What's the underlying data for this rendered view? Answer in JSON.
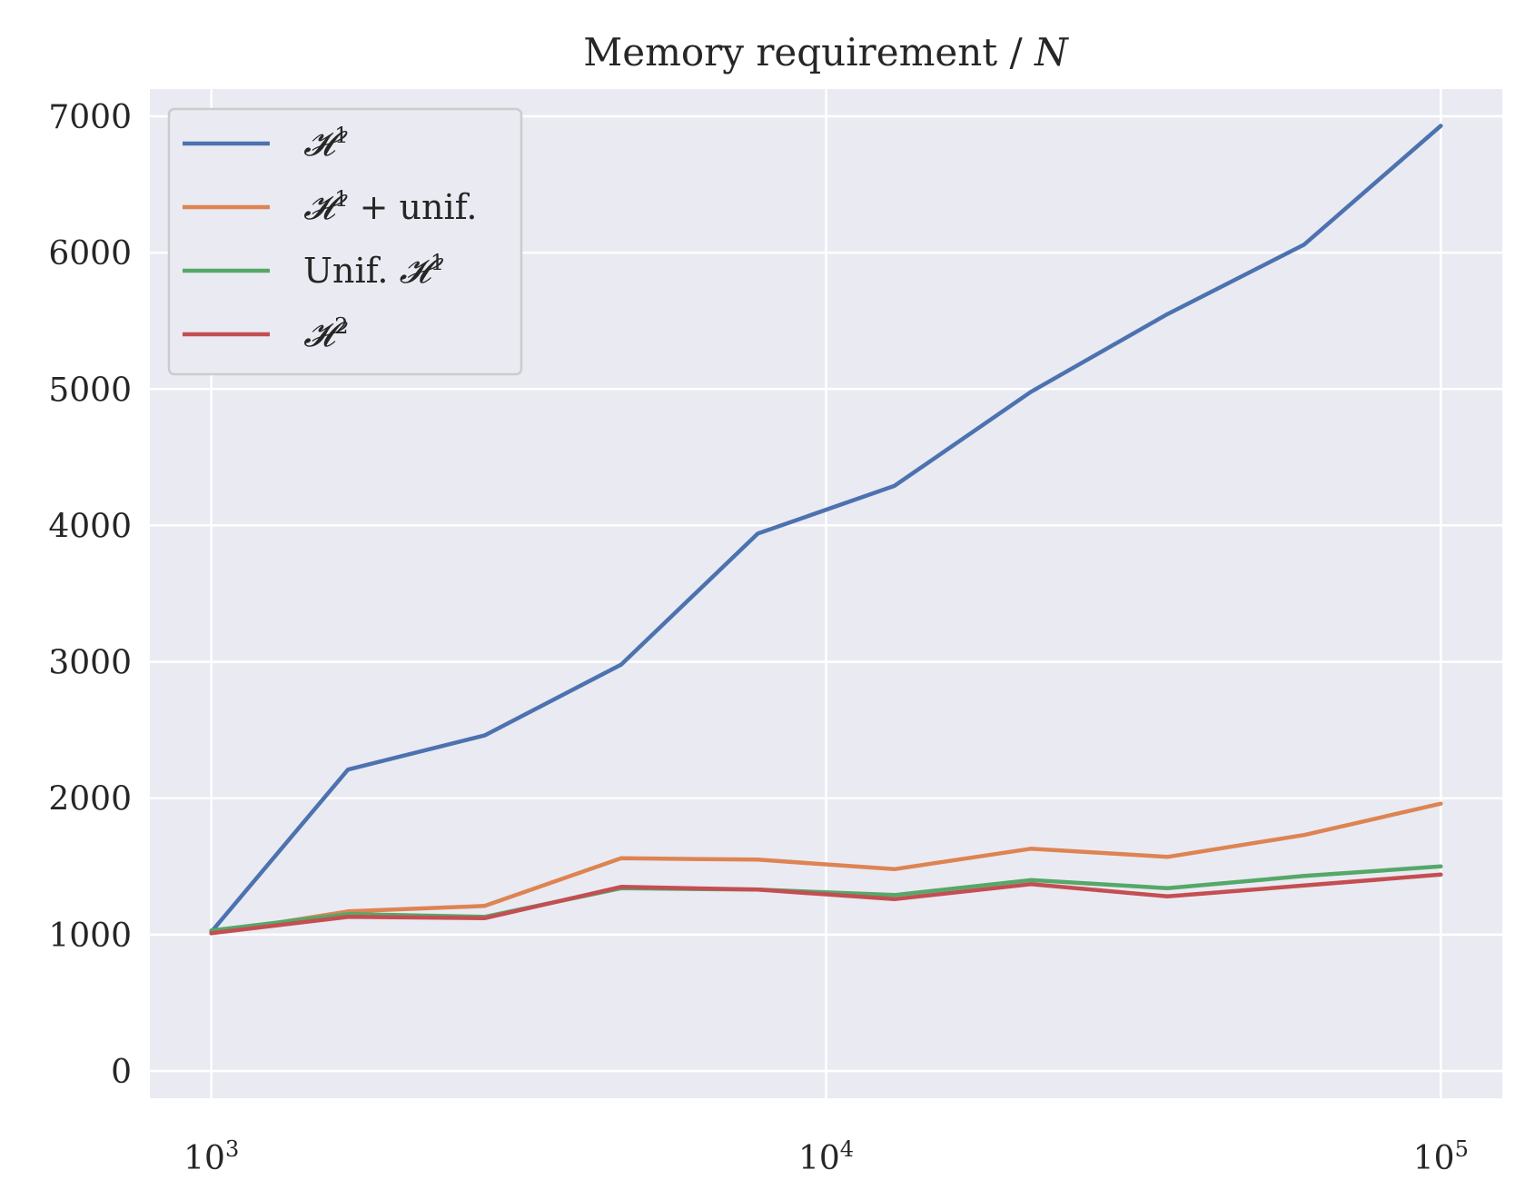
{
  "chart_data": {
    "type": "line",
    "title": "Memory requirement / N",
    "title_parts": {
      "main": "Memory requirement / ",
      "italic": "N"
    },
    "xlabel": "",
    "ylabel": "",
    "x_scale": "log",
    "x": [
      1000,
      1668,
      2783,
      4642,
      7743,
      12915,
      21544,
      35938,
      59948,
      100000
    ],
    "xlim_log10": [
      2.9,
      5.1
    ],
    "ylim": [
      -200,
      7200
    ],
    "x_ticks": [
      {
        "value": 1000,
        "base": "10",
        "exp": "3"
      },
      {
        "value": 10000,
        "base": "10",
        "exp": "4"
      },
      {
        "value": 100000,
        "base": "10",
        "exp": "5"
      }
    ],
    "y_ticks": [
      0,
      1000,
      2000,
      3000,
      4000,
      5000,
      6000,
      7000
    ],
    "grid": true,
    "legend_position": "top-left",
    "series": [
      {
        "name": "H^1",
        "label_main": "𝓗",
        "label_sup": "1",
        "label_suffix": "",
        "label_prefix": "",
        "color": "#4c72b0",
        "values": [
          1020,
          2210,
          2460,
          2980,
          3940,
          4290,
          4980,
          5550,
          6060,
          6930
        ]
      },
      {
        "name": "H^1 + unif.",
        "label_main": "𝓗",
        "label_sup": "1",
        "label_suffix": " + unif.",
        "label_prefix": "",
        "color": "#dd8452",
        "values": [
          1010,
          1170,
          1210,
          1560,
          1550,
          1480,
          1630,
          1570,
          1730,
          1960
        ]
      },
      {
        "name": "Unif. H^1",
        "label_main": "𝓗",
        "label_sup": "1",
        "label_suffix": "",
        "label_prefix": "Unif. ",
        "color": "#55a868",
        "values": [
          1030,
          1150,
          1130,
          1340,
          1330,
          1290,
          1400,
          1340,
          1430,
          1500
        ]
      },
      {
        "name": "H^2",
        "label_main": "𝓗",
        "label_sup": "2",
        "label_suffix": "",
        "label_prefix": "",
        "color": "#c44e52",
        "values": [
          1010,
          1130,
          1120,
          1350,
          1330,
          1260,
          1370,
          1280,
          1360,
          1440
        ]
      }
    ]
  },
  "colors": {
    "plot_background": "#eaeaf2",
    "grid": "#ffffff",
    "text": "#262626",
    "legend_border": "#cccccc"
  }
}
